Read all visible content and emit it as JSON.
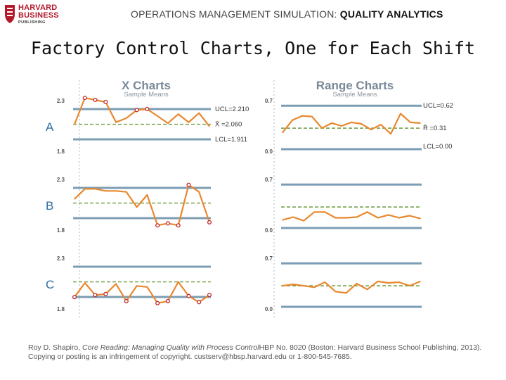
{
  "header": {
    "logo_line1": "HARVARD",
    "logo_line2": "BUSINESS",
    "logo_line3": "PUBLISHING",
    "title_main": "OPERATIONS MANAGEMENT SIMULATION: ",
    "title_bold": "QUALITY ANALYTICS"
  },
  "slide_title": "Factory Control Charts, One for Each Shift",
  "footer": {
    "author": "Roy D. Shapiro, ",
    "reading_title": "Core Reading: Managing Quality with Process Control",
    "rest": "HBP No. 8020 (Boston: Harvard Business School Publishing, 2013). Copying or posting is an infringement of copyright. custserv@hbsp.harvard.edu or 1-800-545-7685."
  },
  "colors": {
    "line": "#e8882e",
    "limit": "#7c9db3",
    "center": "#6b9a3a",
    "marker": "#c0272d",
    "shift_label": "#2e6da4",
    "axis_label": "#555555",
    "title": "#7a8a99"
  },
  "chart_data": [
    {
      "type": "line",
      "title": "X Charts",
      "subtitle": "Sample Means",
      "shift_labels": [
        "A",
        "B",
        "C"
      ],
      "y_ticks": [
        "2.3",
        "1.8"
      ],
      "ylim": [
        1.8,
        2.3
      ],
      "limit_labels": [
        "UCL=2.210",
        "X̄ =2.060",
        "LCL=1.911"
      ],
      "limits": {
        "ucl": 2.21,
        "center": 2.06,
        "lcl": 1.911
      },
      "series": [
        {
          "name": "A",
          "values": [
            2.06,
            2.32,
            2.3,
            2.28,
            2.08,
            2.12,
            2.2,
            2.21,
            2.14,
            2.07,
            2.16,
            2.08,
            2.17,
            2.04
          ],
          "flagged": [
            1,
            2,
            3,
            6,
            7
          ]
        },
        {
          "name": "B",
          "values": [
            2.1,
            2.2,
            2.2,
            2.18,
            2.18,
            2.17,
            2.02,
            2.14,
            1.84,
            1.86,
            1.84,
            2.24,
            2.17,
            1.87
          ],
          "flagged": [
            8,
            9,
            10,
            11,
            13
          ]
        },
        {
          "name": "C",
          "values": [
            1.91,
            2.05,
            1.93,
            1.94,
            2.04,
            1.87,
            2.02,
            2.01,
            1.85,
            1.87,
            2.06,
            1.92,
            1.86,
            1.93
          ],
          "flagged": [
            0,
            2,
            3,
            5,
            8,
            9,
            11,
            12,
            13
          ]
        }
      ]
    },
    {
      "type": "line",
      "title": "Range Charts",
      "subtitle": "Sample Means",
      "y_ticks": [
        "0.7",
        "0.0"
      ],
      "ylim": [
        0.0,
        0.7
      ],
      "limit_labels": [
        "UCL=0.62",
        "R̄ =0.31",
        "LCL=0.00"
      ],
      "limits": {
        "ucl": 0.62,
        "center": 0.31,
        "lcl": 0.0
      },
      "series": [
        {
          "name": "A",
          "values": [
            0.25,
            0.42,
            0.48,
            0.47,
            0.31,
            0.38,
            0.34,
            0.39,
            0.37,
            0.29,
            0.36,
            0.23,
            0.51,
            0.39,
            0.38
          ]
        },
        {
          "name": "B",
          "values": [
            0.13,
            0.17,
            0.12,
            0.24,
            0.24,
            0.16,
            0.16,
            0.17,
            0.24,
            0.16,
            0.2,
            0.16,
            0.19,
            0.15
          ]
        },
        {
          "name": "C",
          "values": [
            0.31,
            0.33,
            0.31,
            0.29,
            0.36,
            0.23,
            0.21,
            0.34,
            0.26,
            0.37,
            0.35,
            0.36,
            0.31,
            0.37
          ]
        }
      ]
    }
  ]
}
